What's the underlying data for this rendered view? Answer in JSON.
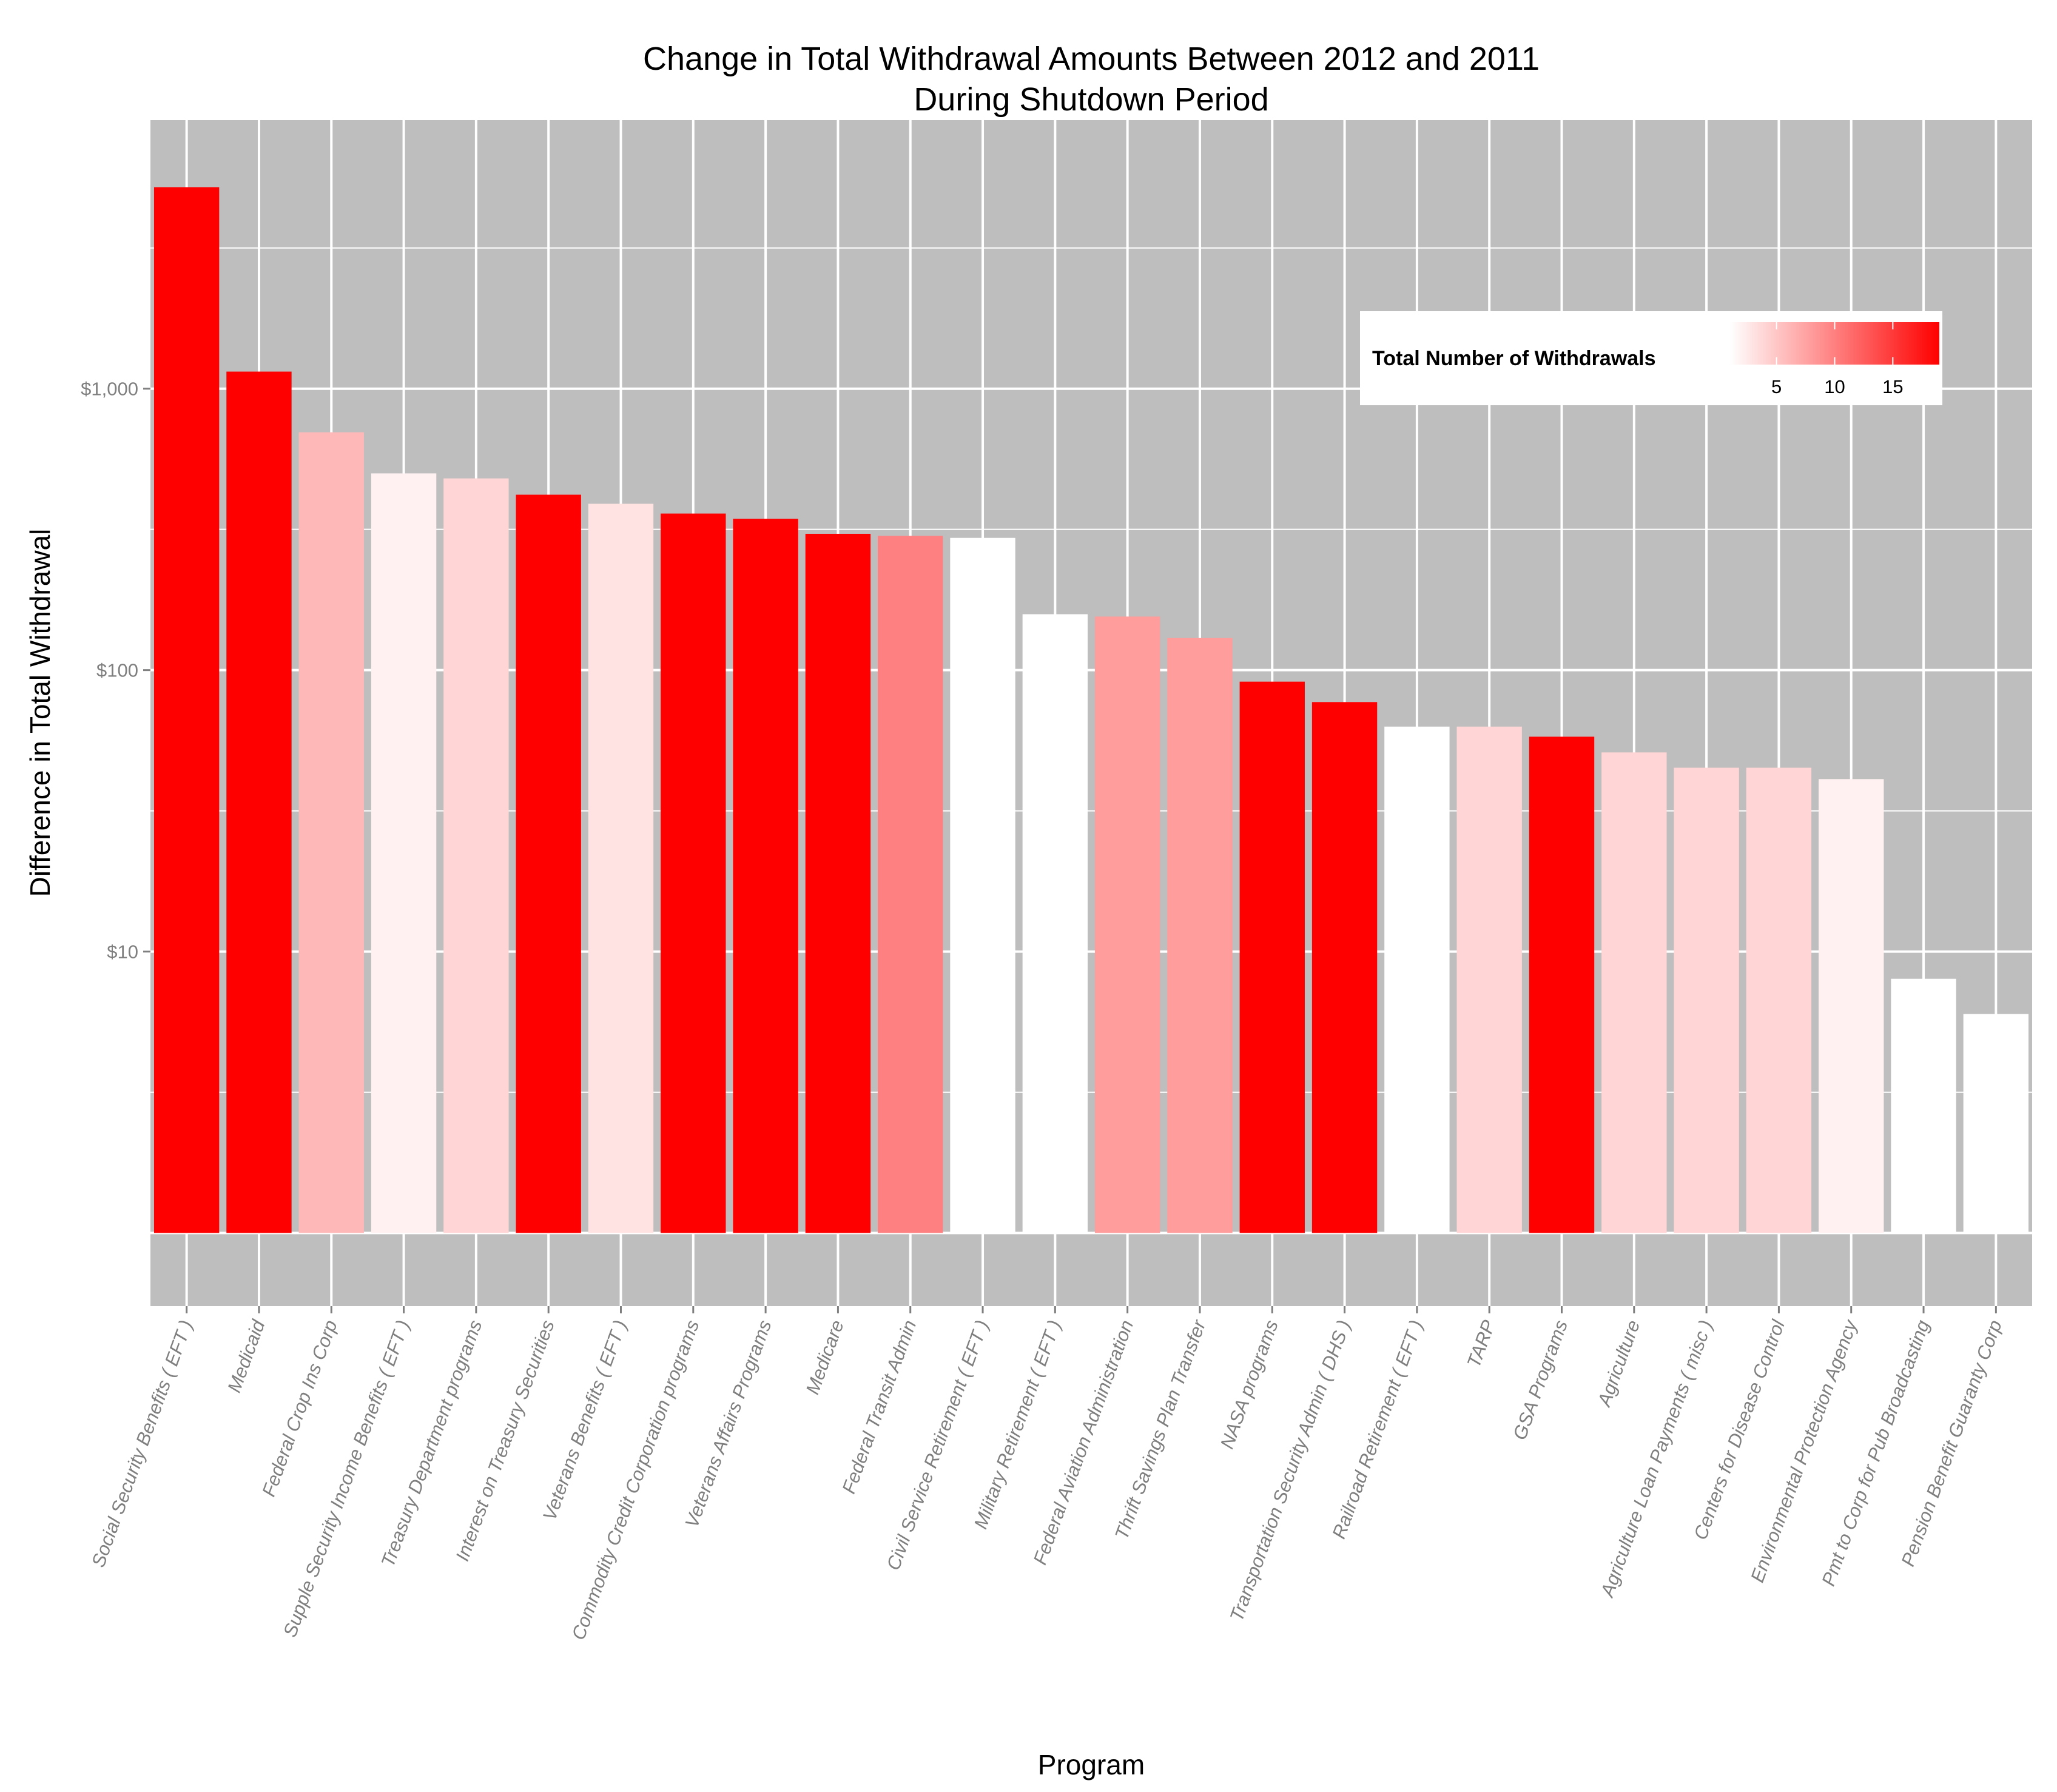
{
  "chart_data": {
    "type": "bar",
    "title": "Change in Total Withdrawal Amounts Between 2012 and 2011",
    "subtitle": "During Shutdown Period",
    "xlabel": "Program",
    "ylabel": "Difference in Total Withdrawal",
    "y_scale": "log10",
    "ylim": [
      0.55,
      9000
    ],
    "y_baseline": 1,
    "y_ticks": [
      10,
      100,
      1000
    ],
    "y_tick_labels": [
      "$10",
      "$100",
      "$1,000"
    ],
    "grid": true,
    "panel_background": "#bebebe",
    "grid_color": "#ffffff",
    "legend": {
      "title": "Total Number of Withdrawals",
      "placement": "top-right",
      "type": "gradient",
      "low_color": "#ffffff",
      "high_color": "#ff0000",
      "range": [
        1,
        19
      ],
      "breaks": [
        5,
        10,
        15
      ],
      "break_labels": [
        "5",
        "10",
        "15"
      ]
    },
    "categories": [
      "Social Security Benefits ( EFT )",
      "Medicaid",
      "Federal Crop Ins Corp",
      "Supple Security Income Benefits ( EFT )",
      "Treasury Department programs",
      "Interest on Treasury Securities",
      "Veterans Benefits ( EFT )",
      "Commodity Credit Corporation programs",
      "Veterans Affairs Programs",
      "Medicare",
      "Federal Transit Admin",
      "Civil Service Retirement ( EFT )",
      "Military Retirement ( EFT )",
      "Federal Aviation Administration",
      "Thrift Savings Plan Transfer",
      "NASA programs",
      "Transportation Security Admin ( DHS )",
      "Railroad Retirement ( EFT )",
      "TARP",
      "GSA Programs",
      "Agriculture",
      "Agriculture Loan Payments ( misc )",
      "Centers for Disease Control",
      "Environmental Protection Agency",
      "Pmt to Corp for Pub Broadcasting",
      "Pension Benefit Guaranty Corp"
    ],
    "values": [
      5200,
      1150,
      700,
      500,
      480,
      420,
      390,
      360,
      345,
      305,
      300,
      295,
      158,
      155,
      130,
      91,
      77,
      63,
      63,
      58,
      51,
      45,
      45,
      41,
      8,
      6
    ],
    "withdrawal_counts": [
      19,
      19,
      6,
      2,
      4,
      19,
      3,
      19,
      19,
      19,
      10,
      1,
      1,
      8,
      8,
      19,
      19,
      1,
      4,
      19,
      4,
      4,
      4,
      2,
      1,
      1
    ]
  }
}
